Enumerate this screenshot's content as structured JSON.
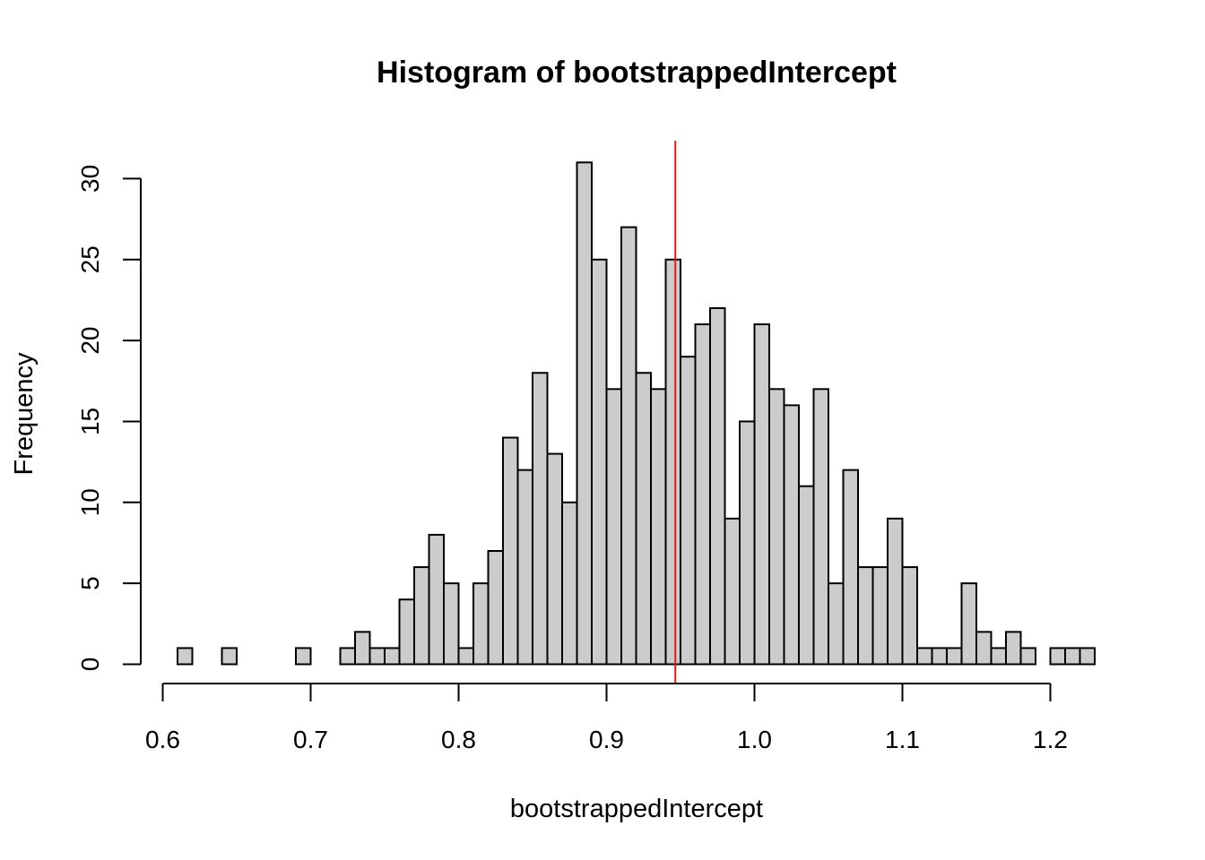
{
  "chart_data": {
    "type": "bar",
    "title": "Histogram of bootstrappedIntercept",
    "xlabel": "bootstrappedIntercept",
    "ylabel": "Frequency",
    "bin_width": 0.01,
    "bin_start": 0.61,
    "values": [
      1,
      0,
      0,
      1,
      0,
      0,
      0,
      0,
      1,
      0,
      0,
      1,
      2,
      1,
      1,
      4,
      6,
      8,
      5,
      1,
      5,
      7,
      14,
      12,
      18,
      13,
      10,
      31,
      25,
      17,
      27,
      18,
      17,
      25,
      19,
      21,
      22,
      9,
      15,
      21,
      17,
      16,
      11,
      17,
      5,
      12,
      6,
      6,
      9,
      6,
      1,
      1,
      1,
      5,
      2,
      1,
      2,
      1,
      0,
      1,
      1,
      1
    ],
    "xlim": [
      0.6,
      1.23
    ],
    "ylim": [
      0,
      31
    ],
    "x_ticks": [
      "0.6",
      "0.7",
      "0.8",
      "0.9",
      "1.0",
      "1.1",
      "1.2"
    ],
    "x_tick_values": [
      0.6,
      0.7,
      0.8,
      0.9,
      1.0,
      1.1,
      1.2
    ],
    "y_ticks": [
      "0",
      "5",
      "10",
      "15",
      "20",
      "25",
      "30"
    ],
    "y_tick_values": [
      0,
      5,
      10,
      15,
      20,
      25,
      30
    ],
    "vline": {
      "x": 0.9465,
      "color": "#e41a1c"
    },
    "bar_fill": "#cccccc",
    "bar_stroke": "#000000",
    "grid": false,
    "legend": "none"
  }
}
